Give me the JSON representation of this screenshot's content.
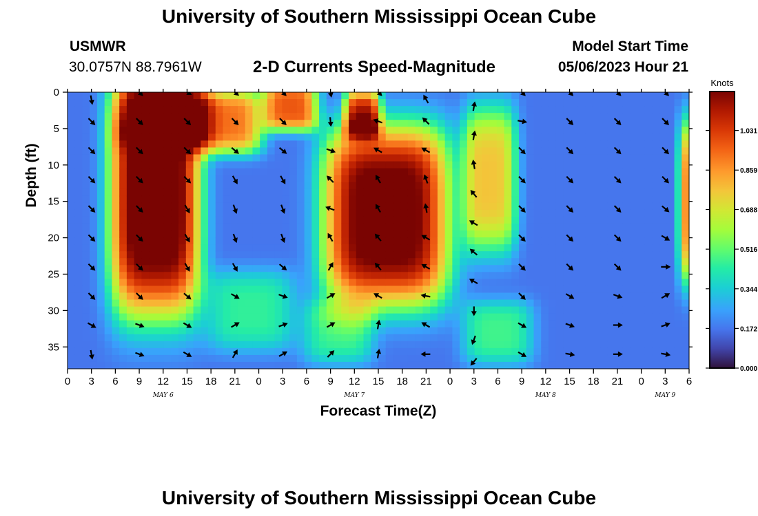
{
  "header": {
    "title": "University of Southern Mississippi Ocean Cube",
    "station": "USMWR",
    "coords": "30.0757N  88.7961W",
    "chart_title": "2-D Currents Speed-Magnitude",
    "model_label": "Model Start Time",
    "model_time": "05/06/2023 Hour 21"
  },
  "footer": {
    "title": "University of Southern Mississippi Ocean Cube"
  },
  "colors": {
    "text": "#000000",
    "background": "#ffffff"
  },
  "chart_data": {
    "type": "heatmap",
    "title": "2-D Currents Speed-Magnitude",
    "xlabel": "Forecast Time(Z)",
    "ylabel": "Depth (ft)",
    "x_ticks": [
      "0",
      "3",
      "6",
      "9",
      "12",
      "15",
      "18",
      "21",
      "0",
      "3",
      "6",
      "9",
      "12",
      "15",
      "18",
      "21",
      "0",
      "3",
      "6",
      "9",
      "12",
      "15",
      "18",
      "21",
      "0",
      "3",
      "6"
    ],
    "x_hours_range": [
      0,
      78
    ],
    "date_labels": [
      {
        "text": "MAY 6",
        "hour": 12
      },
      {
        "text": "MAY 7",
        "hour": 36
      },
      {
        "text": "MAY 8",
        "hour": 60
      },
      {
        "text": "MAY 9",
        "hour": 75
      }
    ],
    "y_ticks": [
      0,
      5,
      10,
      15,
      20,
      25,
      30,
      35
    ],
    "ylim": [
      0,
      38
    ],
    "colorbar": {
      "label": "Knots",
      "ticks": [
        "1.031",
        "0.859",
        "0.688",
        "0.516",
        "0.344",
        "0.172",
        "0.000"
      ],
      "range": [
        0,
        1.2
      ]
    },
    "speed_blobs": [
      {
        "hour": 11,
        "depth": 14,
        "amp": 1.15,
        "sx": 5.0,
        "sy": 15
      },
      {
        "hour": 12,
        "depth": 3,
        "amp": 0.4,
        "sx": 5,
        "sy": 4
      },
      {
        "hour": 20,
        "depth": 4,
        "amp": 0.75,
        "sx": 4,
        "sy": 4
      },
      {
        "hour": 28,
        "depth": 2,
        "amp": 0.8,
        "sx": 3,
        "sy": 3
      },
      {
        "hour": 37,
        "depth": 3,
        "amp": 0.8,
        "sx": 2,
        "sy": 3
      },
      {
        "hour": 40,
        "depth": 17,
        "amp": 1.1,
        "sx": 7,
        "sy": 11
      },
      {
        "hour": 53,
        "depth": 12,
        "amp": 0.6,
        "sx": 3,
        "sy": 9
      },
      {
        "hour": 78,
        "depth": 15,
        "amp": 0.7,
        "sx": 1.2,
        "sy": 10
      },
      {
        "hour": 34,
        "depth": 33,
        "amp": 0.28,
        "sx": 4,
        "sy": 4
      },
      {
        "hour": 54,
        "depth": 33,
        "amp": 0.3,
        "sx": 4,
        "sy": 4
      },
      {
        "hour": 23,
        "depth": 30,
        "amp": 0.28,
        "sx": 5,
        "sy": 5
      }
    ],
    "arrows": [
      {
        "hour": 3,
        "depth": 1,
        "deg": 170
      },
      {
        "hour": 3,
        "depth": 4,
        "deg": 135
      },
      {
        "hour": 3,
        "depth": 8,
        "deg": 135
      },
      {
        "hour": 3,
        "depth": 12,
        "deg": 135
      },
      {
        "hour": 3,
        "depth": 16,
        "deg": 135
      },
      {
        "hour": 3,
        "depth": 20,
        "deg": 135
      },
      {
        "hour": 3,
        "depth": 24,
        "deg": 135
      },
      {
        "hour": 3,
        "depth": 28,
        "deg": 135
      },
      {
        "hour": 3,
        "depth": 32,
        "deg": 120
      },
      {
        "hour": 3,
        "depth": 36,
        "deg": 170
      },
      {
        "hour": 9,
        "depth": 0,
        "deg": 135
      },
      {
        "hour": 9,
        "depth": 4,
        "deg": 135
      },
      {
        "hour": 9,
        "depth": 8,
        "deg": 135
      },
      {
        "hour": 9,
        "depth": 12,
        "deg": 135
      },
      {
        "hour": 9,
        "depth": 16,
        "deg": 135
      },
      {
        "hour": 9,
        "depth": 20,
        "deg": 135
      },
      {
        "hour": 9,
        "depth": 24,
        "deg": 135
      },
      {
        "hour": 9,
        "depth": 28,
        "deg": 135
      },
      {
        "hour": 9,
        "depth": 32,
        "deg": 110
      },
      {
        "hour": 9,
        "depth": 36,
        "deg": 110
      },
      {
        "hour": 15,
        "depth": 0,
        "deg": 120
      },
      {
        "hour": 15,
        "depth": 4,
        "deg": 135
      },
      {
        "hour": 15,
        "depth": 8,
        "deg": 135
      },
      {
        "hour": 15,
        "depth": 12,
        "deg": 135
      },
      {
        "hour": 15,
        "depth": 16,
        "deg": 150
      },
      {
        "hour": 15,
        "depth": 20,
        "deg": 150
      },
      {
        "hour": 15,
        "depth": 24,
        "deg": 150
      },
      {
        "hour": 15,
        "depth": 28,
        "deg": 130
      },
      {
        "hour": 15,
        "depth": 32,
        "deg": 120
      },
      {
        "hour": 15,
        "depth": 36,
        "deg": 120
      },
      {
        "hour": 21,
        "depth": 0,
        "deg": 130
      },
      {
        "hour": 21,
        "depth": 4,
        "deg": 135
      },
      {
        "hour": 21,
        "depth": 8,
        "deg": 130
      },
      {
        "hour": 21,
        "depth": 12,
        "deg": 150
      },
      {
        "hour": 21,
        "depth": 16,
        "deg": 160
      },
      {
        "hour": 21,
        "depth": 20,
        "deg": 160
      },
      {
        "hour": 21,
        "depth": 24,
        "deg": 150
      },
      {
        "hour": 21,
        "depth": 28,
        "deg": 120
      },
      {
        "hour": 21,
        "depth": 32,
        "deg": 60
      },
      {
        "hour": 21,
        "depth": 36,
        "deg": 30
      },
      {
        "hour": 27,
        "depth": 0,
        "deg": 135
      },
      {
        "hour": 27,
        "depth": 4,
        "deg": 135
      },
      {
        "hour": 27,
        "depth": 8,
        "deg": 130
      },
      {
        "hour": 27,
        "depth": 12,
        "deg": 150
      },
      {
        "hour": 27,
        "depth": 16,
        "deg": 160
      },
      {
        "hour": 27,
        "depth": 20,
        "deg": 160
      },
      {
        "hour": 27,
        "depth": 24,
        "deg": 130
      },
      {
        "hour": 27,
        "depth": 28,
        "deg": 110
      },
      {
        "hour": 27,
        "depth": 32,
        "deg": 70
      },
      {
        "hour": 27,
        "depth": 36,
        "deg": 60
      },
      {
        "hour": 33,
        "depth": 0,
        "deg": 170
      },
      {
        "hour": 33,
        "depth": 4,
        "deg": 175
      },
      {
        "hour": 33,
        "depth": 8,
        "deg": 110
      },
      {
        "hour": 33,
        "depth": 12,
        "deg": 315
      },
      {
        "hour": 33,
        "depth": 16,
        "deg": 290
      },
      {
        "hour": 33,
        "depth": 20,
        "deg": 330
      },
      {
        "hour": 33,
        "depth": 24,
        "deg": 30
      },
      {
        "hour": 33,
        "depth": 28,
        "deg": 60
      },
      {
        "hour": 33,
        "depth": 32,
        "deg": 60
      },
      {
        "hour": 33,
        "depth": 36,
        "deg": 45
      },
      {
        "hour": 39,
        "depth": 0,
        "deg": 135
      },
      {
        "hour": 39,
        "depth": 4,
        "deg": 290
      },
      {
        "hour": 39,
        "depth": 8,
        "deg": 300
      },
      {
        "hour": 39,
        "depth": 12,
        "deg": 330
      },
      {
        "hour": 39,
        "depth": 16,
        "deg": 330
      },
      {
        "hour": 39,
        "depth": 20,
        "deg": 320
      },
      {
        "hour": 39,
        "depth": 24,
        "deg": 320
      },
      {
        "hour": 39,
        "depth": 28,
        "deg": 300
      },
      {
        "hour": 39,
        "depth": 32,
        "deg": 10
      },
      {
        "hour": 39,
        "depth": 36,
        "deg": 10
      },
      {
        "hour": 45,
        "depth": 1,
        "deg": 330
      },
      {
        "hour": 45,
        "depth": 4,
        "deg": 315
      },
      {
        "hour": 45,
        "depth": 8,
        "deg": 300
      },
      {
        "hour": 45,
        "depth": 12,
        "deg": 340
      },
      {
        "hour": 45,
        "depth": 16,
        "deg": 350
      },
      {
        "hour": 45,
        "depth": 20,
        "deg": 300
      },
      {
        "hour": 45,
        "depth": 24,
        "deg": 300
      },
      {
        "hour": 45,
        "depth": 28,
        "deg": 280
      },
      {
        "hour": 45,
        "depth": 32,
        "deg": 300
      },
      {
        "hour": 45,
        "depth": 36,
        "deg": 270
      },
      {
        "hour": 51,
        "depth": 2,
        "deg": 10
      },
      {
        "hour": 51,
        "depth": 6,
        "deg": 10
      },
      {
        "hour": 51,
        "depth": 10,
        "deg": 350
      },
      {
        "hour": 51,
        "depth": 14,
        "deg": 320
      },
      {
        "hour": 51,
        "depth": 18,
        "deg": 300
      },
      {
        "hour": 51,
        "depth": 22,
        "deg": 310
      },
      {
        "hour": 51,
        "depth": 26,
        "deg": 300
      },
      {
        "hour": 51,
        "depth": 30,
        "deg": 180
      },
      {
        "hour": 51,
        "depth": 34,
        "deg": 200
      },
      {
        "hour": 51,
        "depth": 37,
        "deg": 220
      },
      {
        "hour": 57,
        "depth": 0,
        "deg": 135
      },
      {
        "hour": 57,
        "depth": 4,
        "deg": 100
      },
      {
        "hour": 57,
        "depth": 8,
        "deg": 135
      },
      {
        "hour": 57,
        "depth": 12,
        "deg": 135
      },
      {
        "hour": 57,
        "depth": 16,
        "deg": 135
      },
      {
        "hour": 57,
        "depth": 20,
        "deg": 135
      },
      {
        "hour": 57,
        "depth": 24,
        "deg": 135
      },
      {
        "hour": 57,
        "depth": 28,
        "deg": 135
      },
      {
        "hour": 57,
        "depth": 32,
        "deg": 120
      },
      {
        "hour": 57,
        "depth": 36,
        "deg": 120
      },
      {
        "hour": 63,
        "depth": 0,
        "deg": 135
      },
      {
        "hour": 63,
        "depth": 4,
        "deg": 135
      },
      {
        "hour": 63,
        "depth": 8,
        "deg": 135
      },
      {
        "hour": 63,
        "depth": 12,
        "deg": 135
      },
      {
        "hour": 63,
        "depth": 16,
        "deg": 135
      },
      {
        "hour": 63,
        "depth": 20,
        "deg": 135
      },
      {
        "hour": 63,
        "depth": 24,
        "deg": 135
      },
      {
        "hour": 63,
        "depth": 28,
        "deg": 120
      },
      {
        "hour": 63,
        "depth": 32,
        "deg": 110
      },
      {
        "hour": 63,
        "depth": 36,
        "deg": 100
      },
      {
        "hour": 69,
        "depth": 0,
        "deg": 135
      },
      {
        "hour": 69,
        "depth": 4,
        "deg": 135
      },
      {
        "hour": 69,
        "depth": 8,
        "deg": 135
      },
      {
        "hour": 69,
        "depth": 12,
        "deg": 135
      },
      {
        "hour": 69,
        "depth": 16,
        "deg": 135
      },
      {
        "hour": 69,
        "depth": 20,
        "deg": 135
      },
      {
        "hour": 69,
        "depth": 24,
        "deg": 135
      },
      {
        "hour": 69,
        "depth": 28,
        "deg": 110
      },
      {
        "hour": 69,
        "depth": 32,
        "deg": 90
      },
      {
        "hour": 69,
        "depth": 36,
        "deg": 90
      },
      {
        "hour": 75,
        "depth": 0,
        "deg": 135
      },
      {
        "hour": 75,
        "depth": 4,
        "deg": 135
      },
      {
        "hour": 75,
        "depth": 8,
        "deg": 135
      },
      {
        "hour": 75,
        "depth": 12,
        "deg": 135
      },
      {
        "hour": 75,
        "depth": 16,
        "deg": 130
      },
      {
        "hour": 75,
        "depth": 20,
        "deg": 120
      },
      {
        "hour": 75,
        "depth": 24,
        "deg": 90
      },
      {
        "hour": 75,
        "depth": 28,
        "deg": 60
      },
      {
        "hour": 75,
        "depth": 32,
        "deg": 70
      },
      {
        "hour": 75,
        "depth": 36,
        "deg": 100
      }
    ]
  }
}
